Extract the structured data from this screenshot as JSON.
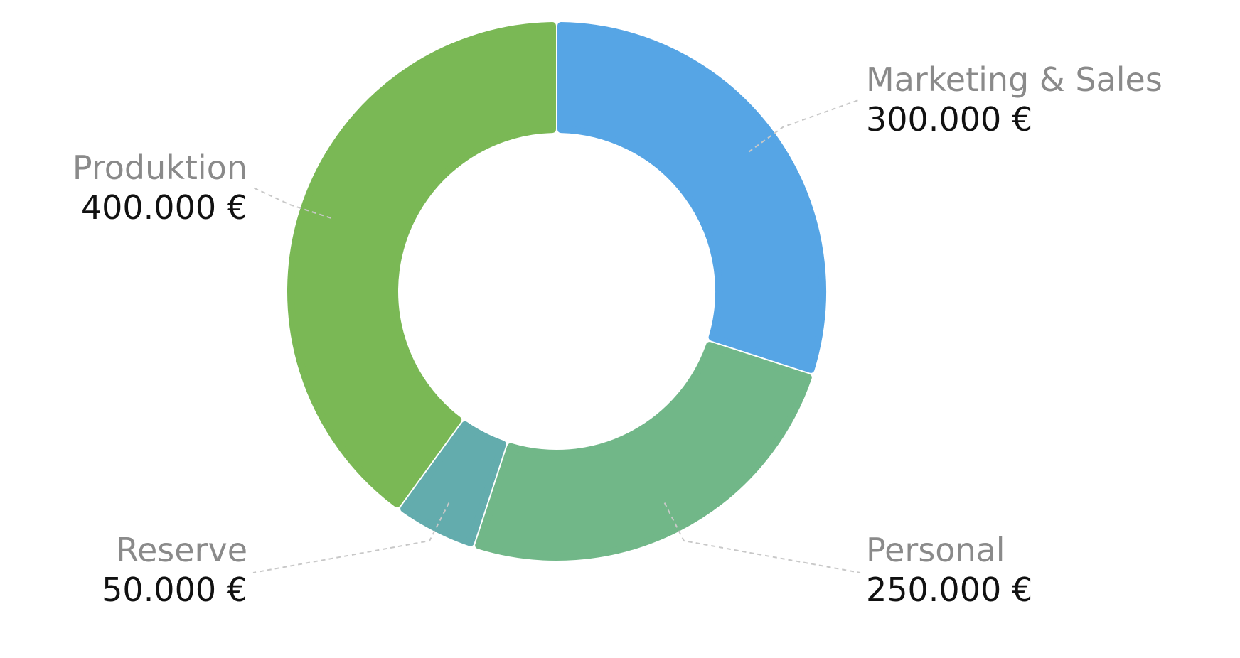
{
  "chart_data": {
    "type": "pie",
    "variant": "donut",
    "categories": [
      "Marketing & Sales",
      "Personal",
      "Reserve",
      "Produktion"
    ],
    "values": [
      300000,
      250000,
      50000,
      400000
    ],
    "value_labels": [
      "300.000 €",
      "250.000 €",
      "50.000 €",
      "400.000 €"
    ],
    "colors": [
      "#56a5e5",
      "#71b788",
      "#63acad",
      "#7ab855"
    ],
    "start_angle_deg": 0,
    "direction": "clockwise",
    "legend": "none"
  }
}
